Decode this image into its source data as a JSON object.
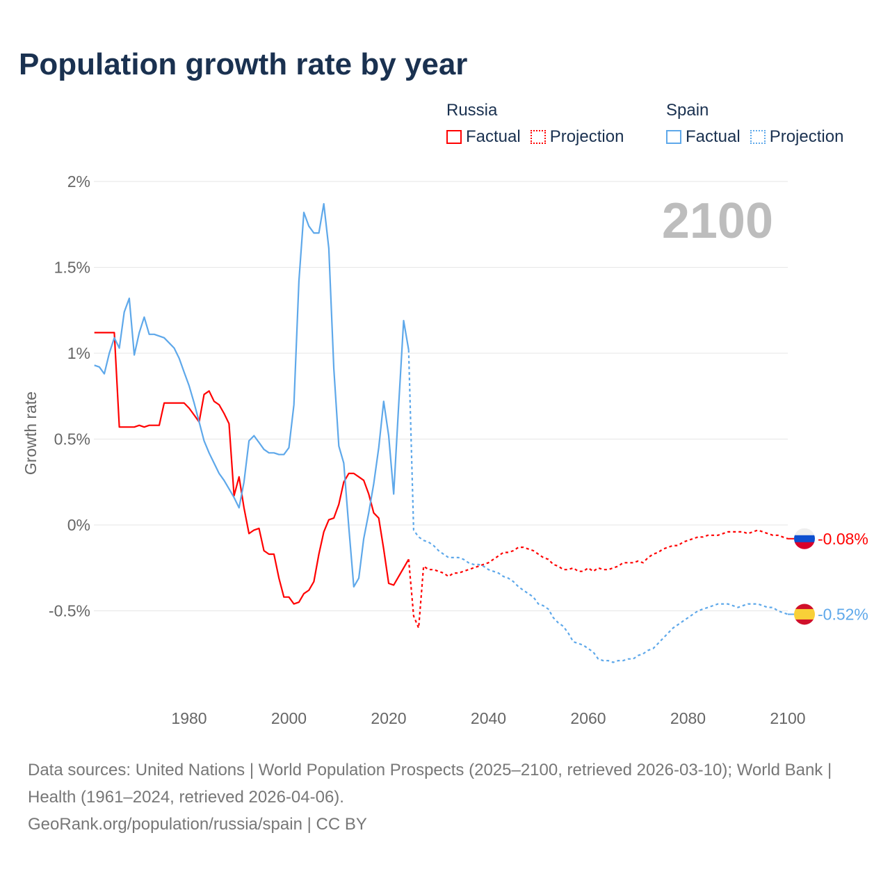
{
  "title": "Population growth rate by year",
  "legend": {
    "groups": [
      {
        "name": "Russia",
        "factual": "Factual",
        "projection": "Projection"
      },
      {
        "name": "Spain",
        "factual": "Factual",
        "projection": "Projection"
      }
    ]
  },
  "year_display": "2100",
  "footer": {
    "sources": "Data sources: United Nations | World Population Prospects (2025–2100, retrieved 2026-03-10); World Bank | Health (1961–2024, retrieved 2026-04-06).",
    "link": "GeoRank.org/population/russia/spain | CC BY"
  },
  "colors": {
    "russia": "#ff0000",
    "spain": "#5ea8ea",
    "grid": "#e6e6e6",
    "axis_text": "#666666"
  },
  "chart_data": {
    "type": "line",
    "title": "Population growth rate by year",
    "xlabel": "",
    "ylabel": "Growth rate",
    "xlim": [
      1961,
      2100
    ],
    "ylim": [
      -1.0,
      2.0
    ],
    "x_ticks": [
      1980,
      2000,
      2020,
      2040,
      2060,
      2080,
      2100
    ],
    "x_tick_labels": [
      "1980",
      "2000",
      "2020",
      "2040",
      "2060",
      "2080",
      "2100"
    ],
    "y_ticks": [
      2,
      1.5,
      1,
      0.5,
      0,
      -0.5
    ],
    "y_tick_labels": [
      "2%",
      "1.5%",
      "1%",
      "0.5%",
      "0%",
      "-0.5%"
    ],
    "grid": true,
    "legend_position": "top-right",
    "series": [
      {
        "name": "Russia Factual",
        "country": "russia",
        "style": "solid",
        "start_year": 1961,
        "values": [
          1.12,
          1.12,
          1.12,
          1.12,
          1.12,
          0.57,
          0.57,
          0.57,
          0.57,
          0.58,
          0.57,
          0.58,
          0.58,
          0.58,
          0.71,
          0.71,
          0.71,
          0.71,
          0.71,
          0.68,
          0.64,
          0.6,
          0.76,
          0.78,
          0.72,
          0.7,
          0.65,
          0.59,
          0.17,
          0.28,
          0.1,
          -0.05,
          -0.03,
          -0.02,
          -0.15,
          -0.17,
          -0.17,
          -0.31,
          -0.42,
          -0.42,
          -0.46,
          -0.45,
          -0.4,
          -0.38,
          -0.33,
          -0.17,
          -0.04,
          0.03,
          0.04,
          0.12,
          0.25,
          0.3,
          0.3,
          0.28,
          0.26,
          0.18,
          0.07,
          0.04,
          -0.14,
          -0.34,
          -0.35,
          -0.3,
          -0.25,
          -0.2
        ]
      },
      {
        "name": "Russia Projection",
        "country": "russia",
        "style": "dotted",
        "start_year": 2025,
        "values": [
          -0.53,
          -0.6,
          -0.24,
          -0.26,
          -0.26,
          -0.27,
          -0.28,
          -0.3,
          -0.28,
          -0.28,
          -0.27,
          -0.26,
          -0.25,
          -0.24,
          -0.23,
          -0.22,
          -0.2,
          -0.18,
          -0.16,
          -0.16,
          -0.15,
          -0.13,
          -0.13,
          -0.14,
          -0.15,
          -0.17,
          -0.19,
          -0.2,
          -0.23,
          -0.24,
          -0.26,
          -0.26,
          -0.25,
          -0.27,
          -0.27,
          -0.25,
          -0.27,
          -0.25,
          -0.26,
          -0.26,
          -0.25,
          -0.24,
          -0.22,
          -0.22,
          -0.22,
          -0.21,
          -0.22,
          -0.19,
          -0.17,
          -0.16,
          -0.14,
          -0.13,
          -0.12,
          -0.12,
          -0.1,
          -0.09,
          -0.08,
          -0.07,
          -0.07,
          -0.06,
          -0.06,
          -0.06,
          -0.05,
          -0.04,
          -0.04,
          -0.04,
          -0.04,
          -0.05,
          -0.04,
          -0.03,
          -0.04,
          -0.05,
          -0.06,
          -0.06,
          -0.07,
          -0.08
        ]
      },
      {
        "name": "Spain Factual",
        "country": "spain",
        "style": "solid",
        "start_year": 1961,
        "values": [
          0.93,
          0.92,
          0.88,
          1.0,
          1.09,
          1.03,
          1.24,
          1.32,
          0.99,
          1.12,
          1.21,
          1.11,
          1.11,
          1.1,
          1.09,
          1.06,
          1.03,
          0.97,
          0.89,
          0.81,
          0.71,
          0.6,
          0.49,
          0.42,
          0.36,
          0.3,
          0.26,
          0.21,
          0.16,
          0.1,
          0.25,
          0.49,
          0.52,
          0.48,
          0.44,
          0.42,
          0.42,
          0.41,
          0.41,
          0.45,
          0.7,
          1.42,
          1.82,
          1.74,
          1.7,
          1.7,
          1.87,
          1.61,
          0.91,
          0.46,
          0.36,
          -0.01,
          -0.36,
          -0.31,
          -0.08,
          0.07,
          0.24,
          0.45,
          0.72,
          0.52,
          0.18,
          0.7,
          1.19,
          1.02
        ]
      },
      {
        "name": "Spain Projection",
        "country": "spain",
        "style": "dotted",
        "start_year": 2025,
        "values": [
          -0.03,
          -0.07,
          -0.09,
          -0.1,
          -0.12,
          -0.15,
          -0.17,
          -0.19,
          -0.19,
          -0.19,
          -0.2,
          -0.22,
          -0.23,
          -0.23,
          -0.24,
          -0.26,
          -0.27,
          -0.28,
          -0.3,
          -0.31,
          -0.33,
          -0.36,
          -0.38,
          -0.4,
          -0.42,
          -0.46,
          -0.47,
          -0.49,
          -0.54,
          -0.57,
          -0.59,
          -0.63,
          -0.68,
          -0.69,
          -0.7,
          -0.72,
          -0.74,
          -0.78,
          -0.79,
          -0.79,
          -0.8,
          -0.79,
          -0.79,
          -0.78,
          -0.78,
          -0.76,
          -0.75,
          -0.73,
          -0.72,
          -0.69,
          -0.66,
          -0.63,
          -0.6,
          -0.58,
          -0.56,
          -0.54,
          -0.52,
          -0.5,
          -0.49,
          -0.48,
          -0.47,
          -0.46,
          -0.46,
          -0.46,
          -0.47,
          -0.48,
          -0.47,
          -0.46,
          -0.46,
          -0.46,
          -0.47,
          -0.48,
          -0.48,
          -0.5,
          -0.51,
          -0.52
        ]
      }
    ],
    "end_labels": [
      {
        "country": "russia",
        "value": -0.08,
        "text": "-0.08%"
      },
      {
        "country": "spain",
        "value": -0.52,
        "text": "-0.52%"
      }
    ]
  }
}
